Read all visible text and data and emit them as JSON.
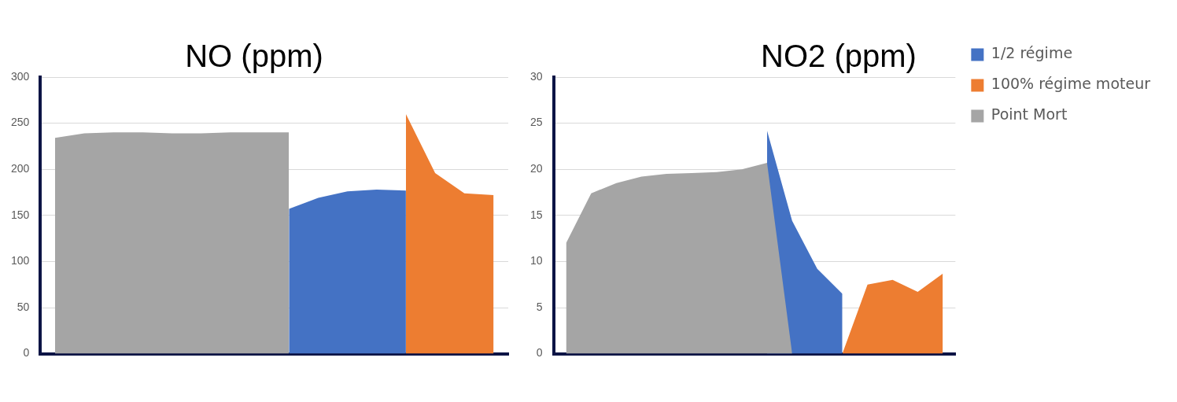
{
  "chart_data": [
    {
      "type": "area",
      "title": "NO (ppm)",
      "categories": [
        null,
        null,
        null,
        null,
        null,
        null,
        null,
        null,
        null,
        null,
        null,
        null,
        null,
        null,
        null,
        null
      ],
      "ylim": [
        0,
        300
      ],
      "yticks": [
        0,
        50,
        100,
        150,
        200,
        250,
        300
      ],
      "grid": "y",
      "legend": false,
      "series": [
        {
          "color": "#4472c4",
          "values": [
            null,
            null,
            null,
            null,
            null,
            null,
            null,
            null,
            157,
            169,
            176,
            178,
            177,
            null,
            null,
            null
          ]
        },
        {
          "color": "#ed7d31",
          "values": [
            null,
            null,
            null,
            null,
            null,
            null,
            null,
            null,
            null,
            null,
            null,
            null,
            260,
            196,
            174,
            172
          ]
        },
        {
          "color": "#a5a5a5",
          "values": [
            234,
            239,
            240,
            240,
            239,
            239,
            240,
            240,
            240,
            null,
            null,
            null,
            null,
            null,
            null,
            null
          ]
        }
      ]
    },
    {
      "type": "area",
      "title": "NO2 (ppm)",
      "categories": [
        null,
        null,
        null,
        null,
        null,
        null,
        null,
        null,
        null,
        null,
        null,
        null,
        null,
        null,
        null,
        null
      ],
      "ylim": [
        0,
        30
      ],
      "yticks": [
        0,
        5,
        10,
        15,
        20,
        25,
        30
      ],
      "grid": "y",
      "legend": "top right",
      "series": [
        {
          "name": "1/2 régime",
          "color": "#4472c4",
          "values": [
            null,
            null,
            null,
            null,
            null,
            null,
            null,
            null,
            24.2,
            14.4,
            9.2,
            6.5,
            null,
            null,
            null,
            null
          ]
        },
        {
          "name": "100% régime moteur",
          "color": "#ed7d31",
          "values": [
            null,
            null,
            null,
            null,
            null,
            null,
            null,
            null,
            null,
            null,
            null,
            0,
            7.5,
            8,
            6.7,
            8.7
          ]
        },
        {
          "name": "Point Mort",
          "color": "#a5a5a5",
          "values": [
            12,
            17.4,
            18.5,
            19.2,
            19.5,
            19.6,
            19.7,
            20,
            20.7,
            0,
            null,
            null,
            null,
            null,
            null,
            null
          ]
        }
      ]
    }
  ]
}
